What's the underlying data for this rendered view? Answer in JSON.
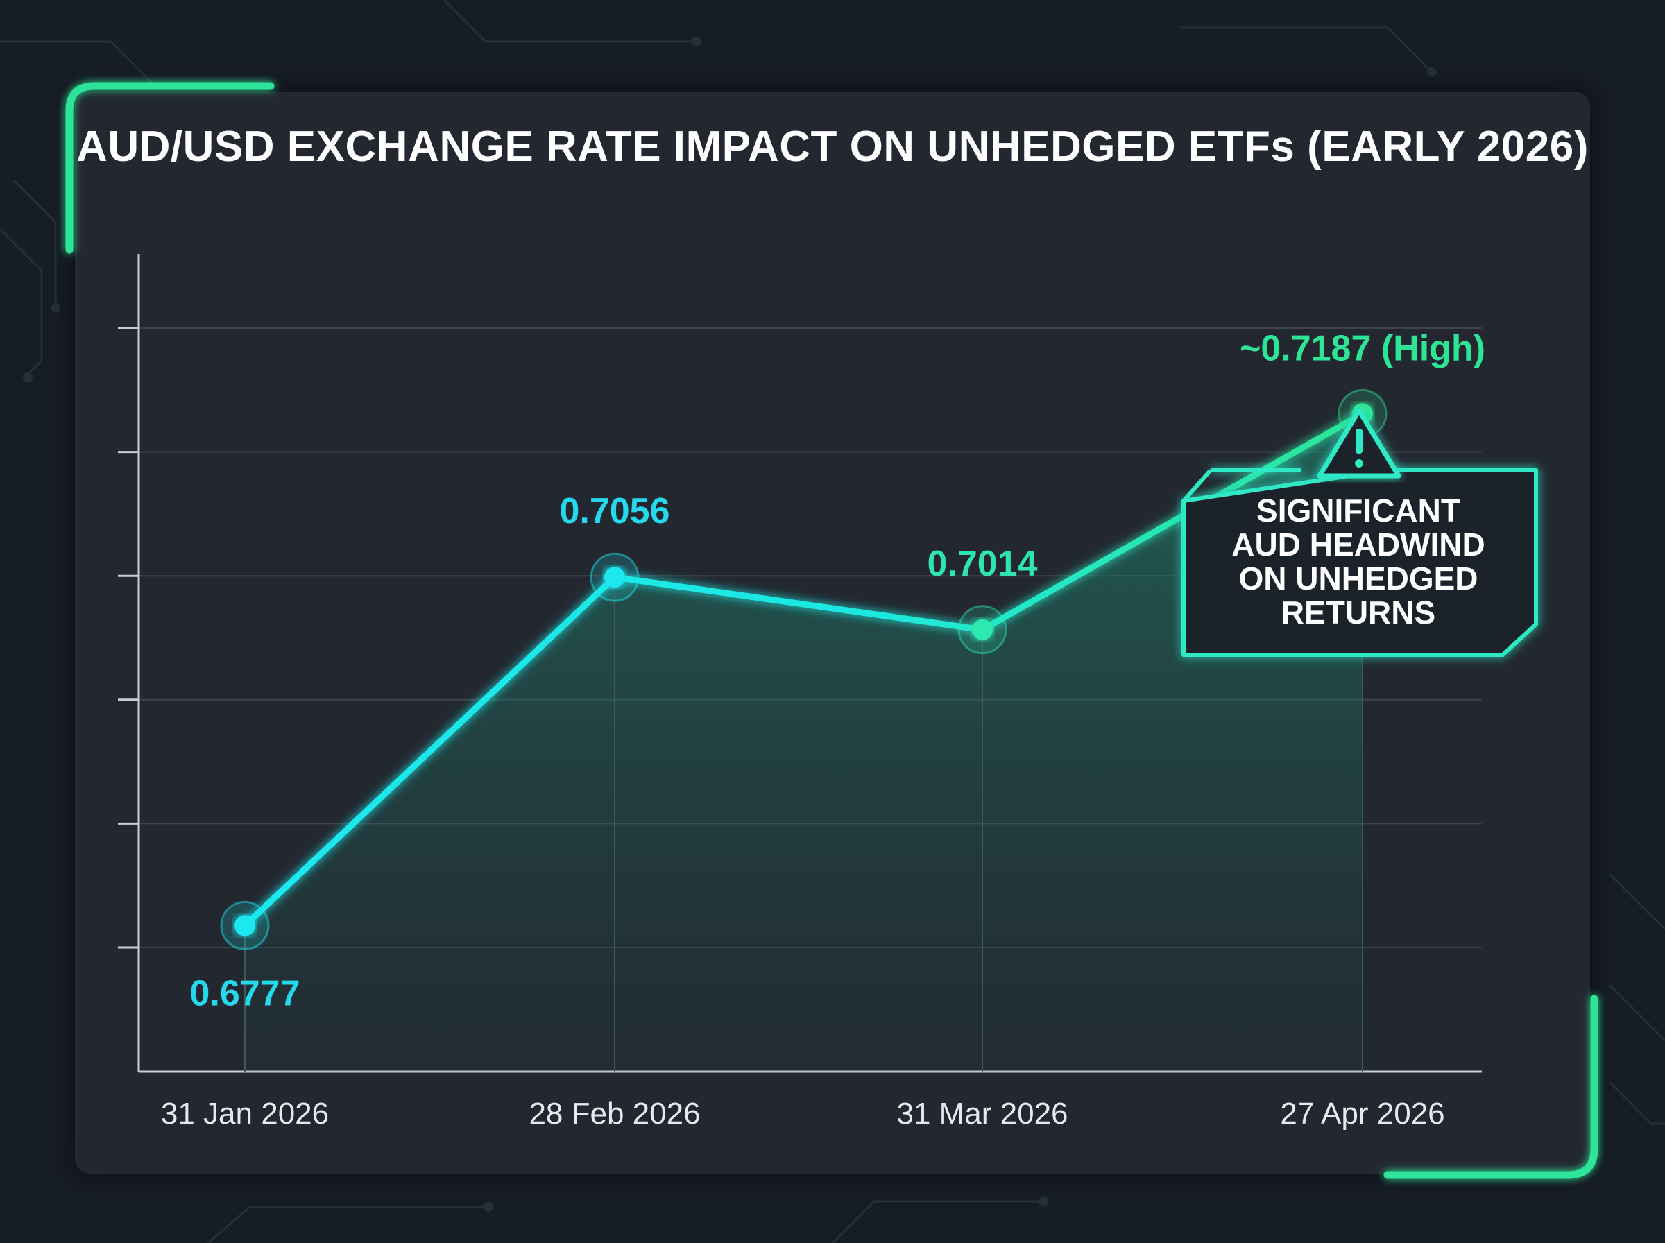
{
  "chart_data": {
    "type": "line",
    "title": "AUD/USD EXCHANGE RATE IMPACT ON UNHEDGED ETFs (EARLY 2026)",
    "xlabel": "",
    "ylabel": "",
    "categories": [
      "31 Jan 2026",
      "28 Feb 2026",
      "31 Mar 2026",
      "27 Apr 2026"
    ],
    "series": [
      {
        "values": [
          0.6777,
          0.7056,
          0.7014,
          0.7187
        ]
      }
    ],
    "data_labels": [
      "0.6777",
      "0.7056",
      "0.7014",
      "~0.7187 (High)"
    ],
    "ylim": [
      0.666,
      0.7315
    ],
    "y_tick_count": 6,
    "grid": true,
    "colors": {
      "start": "#1ee8f0",
      "end": "#2ee597",
      "fill": "#1f6f62"
    },
    "annotation": {
      "icon": "warning-icon",
      "lines": [
        "SIGNIFICANT",
        "AUD HEADWIND",
        "ON UNHEDGED",
        "RETURNS"
      ]
    }
  }
}
